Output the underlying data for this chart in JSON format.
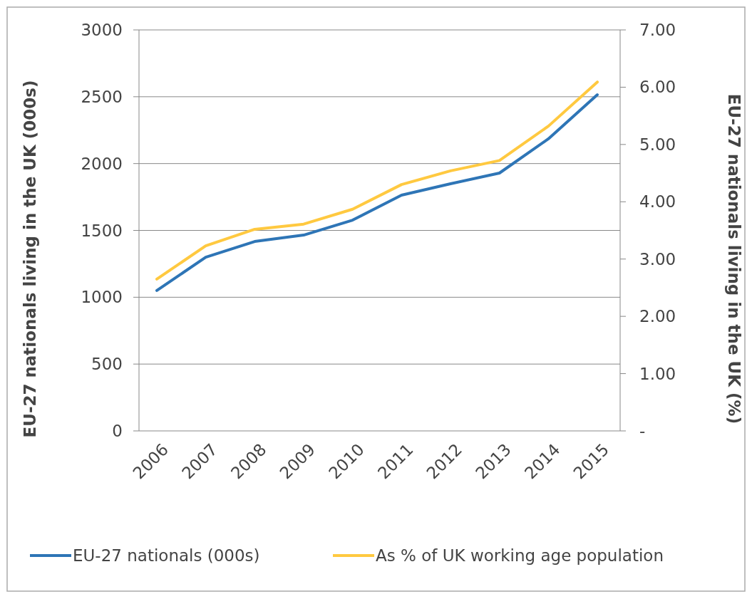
{
  "chart_data": {
    "type": "line",
    "categories": [
      "2006",
      "2007",
      "2008",
      "2009",
      "2010",
      "2011",
      "2012",
      "2013",
      "2014",
      "2015"
    ],
    "ylabel": "EU-27 nationals living in the UK (000s)",
    "y2label": "EU-27 nationals living in the UK (%)",
    "ylim": [
      0,
      3000
    ],
    "yticks": [
      0,
      500,
      1000,
      1500,
      2000,
      2500,
      3000
    ],
    "y2lim": [
      0,
      7
    ],
    "y2ticks": [
      {
        "value": 0,
        "label": "-"
      },
      {
        "value": 1,
        "label": "1.00"
      },
      {
        "value": 2,
        "label": "2.00"
      },
      {
        "value": 3,
        "label": "3.00"
      },
      {
        "value": 4,
        "label": "4.00"
      },
      {
        "value": 5,
        "label": "5.00"
      },
      {
        "value": 6,
        "label": "6.00"
      },
      {
        "value": 7,
        "label": "7.00"
      }
    ],
    "series": [
      {
        "name": "EU-27 nationals (000s)",
        "color": "#2e75b6",
        "values": [
          1050,
          1300,
          1417,
          1465,
          1577,
          1764,
          1849,
          1929,
          2185,
          2515
        ]
      },
      {
        "name": "As % of UK working age population",
        "color": "#ffc940",
        "axis": "y2",
        "values": [
          2.65,
          3.23,
          3.52,
          3.61,
          3.87,
          4.3,
          4.54,
          4.72,
          5.32,
          6.09
        ]
      }
    ],
    "grid": "y",
    "legend": "bottom",
    "marker": "none",
    "line_style": "solid"
  }
}
